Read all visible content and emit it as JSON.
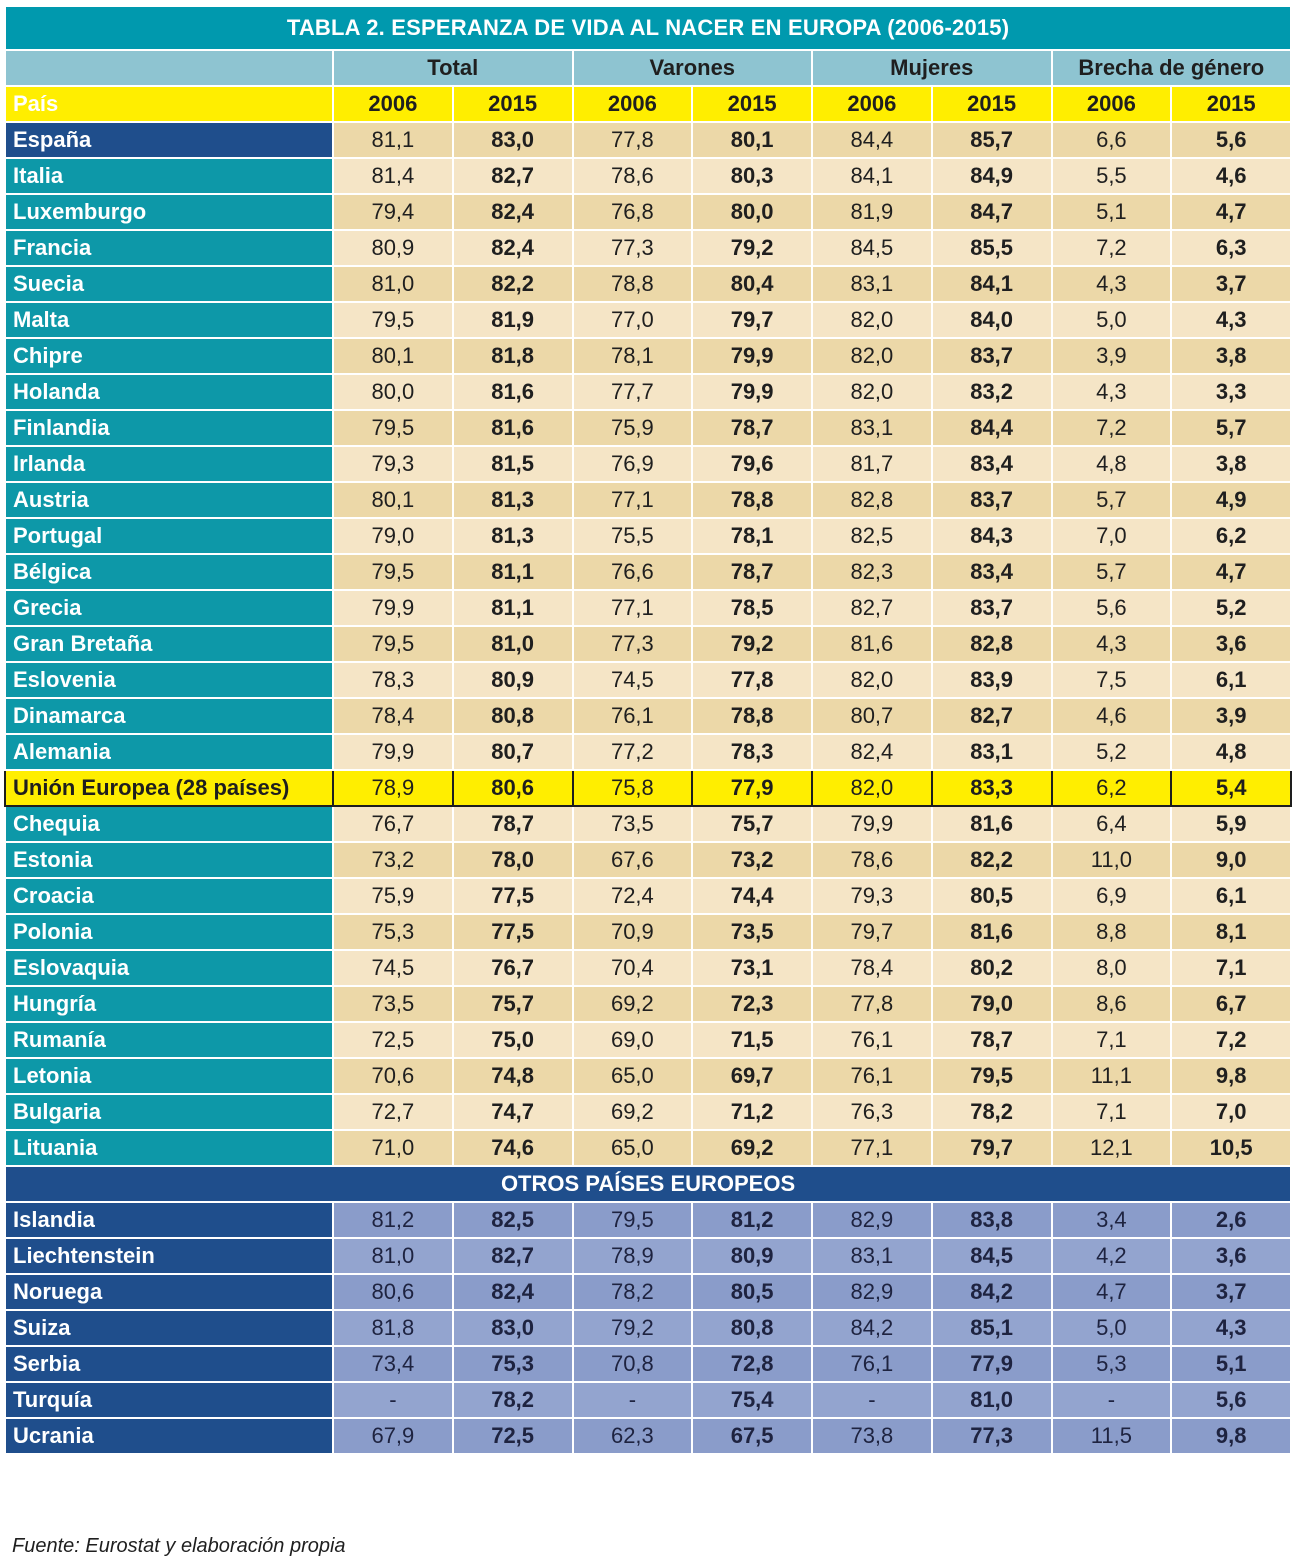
{
  "title": "TABLA 2. ESPERANZA DE VIDA AL NACER EN EUROPA (2006-2015)",
  "groups": [
    "Total",
    "Varones",
    "Mujeres",
    "Brecha de género"
  ],
  "header": {
    "country_label": "País",
    "years": [
      "2006",
      "2015",
      "2006",
      "2015",
      "2006",
      "2015",
      "2006",
      "2015"
    ]
  },
  "rows": [
    {
      "country": "España",
      "values": [
        "81,1",
        "83,0",
        "77,8",
        "80,1",
        "84,4",
        "85,7",
        "6,6",
        "5,6"
      ]
    },
    {
      "country": "Italia",
      "values": [
        "81,4",
        "82,7",
        "78,6",
        "80,3",
        "84,1",
        "84,9",
        "5,5",
        "4,6"
      ]
    },
    {
      "country": "Luxemburgo",
      "values": [
        "79,4",
        "82,4",
        "76,8",
        "80,0",
        "81,9",
        "84,7",
        "5,1",
        "4,7"
      ]
    },
    {
      "country": "Francia",
      "values": [
        "80,9",
        "82,4",
        "77,3",
        "79,2",
        "84,5",
        "85,5",
        "7,2",
        "6,3"
      ]
    },
    {
      "country": "Suecia",
      "values": [
        "81,0",
        "82,2",
        "78,8",
        "80,4",
        "83,1",
        "84,1",
        "4,3",
        "3,7"
      ]
    },
    {
      "country": "Malta",
      "values": [
        "79,5",
        "81,9",
        "77,0",
        "79,7",
        "82,0",
        "84,0",
        "5,0",
        "4,3"
      ]
    },
    {
      "country": "Chipre",
      "values": [
        "80,1",
        "81,8",
        "78,1",
        "79,9",
        "82,0",
        "83,7",
        "3,9",
        "3,8"
      ]
    },
    {
      "country": "Holanda",
      "values": [
        "80,0",
        "81,6",
        "77,7",
        "79,9",
        "82,0",
        "83,2",
        "4,3",
        "3,3"
      ]
    },
    {
      "country": "Finlandia",
      "values": [
        "79,5",
        "81,6",
        "75,9",
        "78,7",
        "83,1",
        "84,4",
        "7,2",
        "5,7"
      ]
    },
    {
      "country": "Irlanda",
      "values": [
        "79,3",
        "81,5",
        "76,9",
        "79,6",
        "81,7",
        "83,4",
        "4,8",
        "3,8"
      ]
    },
    {
      "country": "Austria",
      "values": [
        "80,1",
        "81,3",
        "77,1",
        "78,8",
        "82,8",
        "83,7",
        "5,7",
        "4,9"
      ]
    },
    {
      "country": "Portugal",
      "values": [
        "79,0",
        "81,3",
        "75,5",
        "78,1",
        "82,5",
        "84,3",
        "7,0",
        "6,2"
      ]
    },
    {
      "country": "Bélgica",
      "values": [
        "79,5",
        "81,1",
        "76,6",
        "78,7",
        "82,3",
        "83,4",
        "5,7",
        "4,7"
      ]
    },
    {
      "country": "Grecia",
      "values": [
        "79,9",
        "81,1",
        "77,1",
        "78,5",
        "82,7",
        "83,7",
        "5,6",
        "5,2"
      ]
    },
    {
      "country": "Gran Bretaña",
      "values": [
        "79,5",
        "81,0",
        "77,3",
        "79,2",
        "81,6",
        "82,8",
        "4,3",
        "3,6"
      ]
    },
    {
      "country": "Eslovenia",
      "values": [
        "78,3",
        "80,9",
        "74,5",
        "77,8",
        "82,0",
        "83,9",
        "7,5",
        "6,1"
      ]
    },
    {
      "country": "Dinamarca",
      "values": [
        "78,4",
        "80,8",
        "76,1",
        "78,8",
        "80,7",
        "82,7",
        "4,6",
        "3,9"
      ]
    },
    {
      "country": "Alemania",
      "values": [
        "79,9",
        "80,7",
        "77,2",
        "78,3",
        "82,4",
        "83,1",
        "5,2",
        "4,8"
      ]
    }
  ],
  "eu_row": {
    "country": "Unión Europea (28 países)",
    "values": [
      "78,9",
      "80,6",
      "75,8",
      "77,9",
      "82,0",
      "83,3",
      "6,2",
      "5,4"
    ]
  },
  "rows_after": [
    {
      "country": "Chequia",
      "values": [
        "76,7",
        "78,7",
        "73,5",
        "75,7",
        "79,9",
        "81,6",
        "6,4",
        "5,9"
      ]
    },
    {
      "country": "Estonia",
      "values": [
        "73,2",
        "78,0",
        "67,6",
        "73,2",
        "78,6",
        "82,2",
        "11,0",
        "9,0"
      ]
    },
    {
      "country": "Croacia",
      "values": [
        "75,9",
        "77,5",
        "72,4",
        "74,4",
        "79,3",
        "80,5",
        "6,9",
        "6,1"
      ]
    },
    {
      "country": "Polonia",
      "values": [
        "75,3",
        "77,5",
        "70,9",
        "73,5",
        "79,7",
        "81,6",
        "8,8",
        "8,1"
      ]
    },
    {
      "country": "Eslovaquia",
      "values": [
        "74,5",
        "76,7",
        "70,4",
        "73,1",
        "78,4",
        "80,2",
        "8,0",
        "7,1"
      ]
    },
    {
      "country": "Hungría",
      "values": [
        "73,5",
        "75,7",
        "69,2",
        "72,3",
        "77,8",
        "79,0",
        "8,6",
        "6,7"
      ]
    },
    {
      "country": "Rumanía",
      "values": [
        "72,5",
        "75,0",
        "69,0",
        "71,5",
        "76,1",
        "78,7",
        "7,1",
        "7,2"
      ]
    },
    {
      "country": "Letonia",
      "values": [
        "70,6",
        "74,8",
        "65,0",
        "69,7",
        "76,1",
        "79,5",
        "11,1",
        "9,8"
      ]
    },
    {
      "country": "Bulgaria",
      "values": [
        "72,7",
        "74,7",
        "69,2",
        "71,2",
        "76,3",
        "78,2",
        "7,1",
        "7,0"
      ]
    },
    {
      "country": "Lituania",
      "values": [
        "71,0",
        "74,6",
        "65,0",
        "69,2",
        "77,1",
        "79,7",
        "12,1",
        "10,5"
      ]
    }
  ],
  "others_title": "OTROS PAÍSES EUROPEOS",
  "others": [
    {
      "country": "Islandia",
      "values": [
        "81,2",
        "82,5",
        "79,5",
        "81,2",
        "82,9",
        "83,8",
        "3,4",
        "2,6"
      ]
    },
    {
      "country": "Liechtenstein",
      "values": [
        "81,0",
        "82,7",
        "78,9",
        "80,9",
        "83,1",
        "84,5",
        "4,2",
        "3,6"
      ]
    },
    {
      "country": "Noruega",
      "values": [
        "80,6",
        "82,4",
        "78,2",
        "80,5",
        "82,9",
        "84,2",
        "4,7",
        "3,7"
      ]
    },
    {
      "country": "Suiza",
      "values": [
        "81,8",
        "83,0",
        "79,2",
        "80,8",
        "84,2",
        "85,1",
        "5,0",
        "4,3"
      ]
    },
    {
      "country": "Serbia",
      "values": [
        "73,4",
        "75,3",
        "70,8",
        "72,8",
        "76,1",
        "77,9",
        "5,3",
        "5,1"
      ]
    },
    {
      "country": "Turquía",
      "values": [
        "-",
        "78,2",
        "-",
        "75,4",
        "-",
        "81,0",
        "-",
        "5,6"
      ]
    },
    {
      "country": "Ucrania",
      "values": [
        "67,9",
        "72,5",
        "62,3",
        "67,5",
        "73,8",
        "77,3",
        "11,5",
        "9,8"
      ]
    }
  ],
  "source": "Fuente: Eurostat y elaboración propia",
  "colors": {
    "title_bg": "#0099ae",
    "country_teal": "#0d98a8",
    "country_navy": "#1f4e8c",
    "highlight_yellow": "#ffee00",
    "cell_tan": "#ecd8a8",
    "cell_light": "#f5e5c6",
    "other_cell": "#8a9cca"
  }
}
